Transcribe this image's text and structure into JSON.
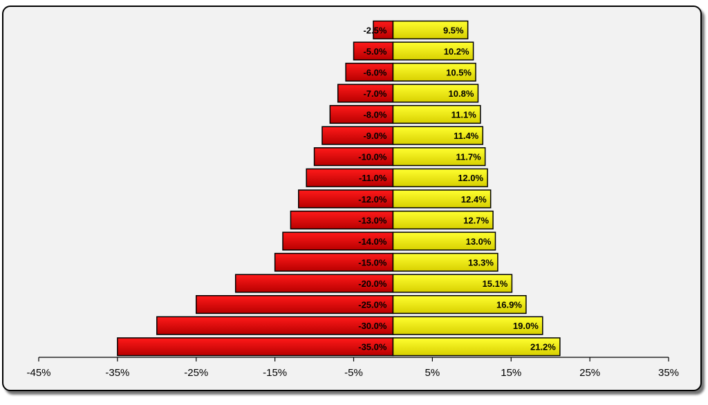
{
  "chart_data": {
    "type": "bar",
    "orientation": "horizontal",
    "stacked": "diverging",
    "xlim": [
      -45,
      35
    ],
    "x_ticks": [
      -45,
      -35,
      -25,
      -15,
      -5,
      5,
      15,
      25,
      35
    ],
    "x_tick_labels": [
      "-45%",
      "-35%",
      "-25%",
      "-15%",
      "-5%",
      "5%",
      "15%",
      "25%",
      "35%"
    ],
    "grid": false,
    "legend": "none",
    "title": "",
    "xlabel": "",
    "ylabel": "",
    "series": [
      {
        "color": "#e00000",
        "values": [
          -2.5,
          -5.0,
          -6.0,
          -7.0,
          -8.0,
          -9.0,
          -10.0,
          -11.0,
          -12.0,
          -13.0,
          -14.0,
          -15.0,
          -20.0,
          -25.0,
          -30.0,
          -35.0
        ],
        "labels": [
          "-2.5%",
          "-5.0%",
          "-6.0%",
          "-7.0%",
          "-8.0%",
          "-9.0%",
          "-10.0%",
          "-11.0%",
          "-12.0%",
          "-13.0%",
          "-14.0%",
          "-15.0%",
          "-20.0%",
          "-25.0%",
          "-30.0%",
          "-35.0%"
        ]
      },
      {
        "color": "#e8e800",
        "values": [
          9.5,
          10.2,
          10.5,
          10.8,
          11.1,
          11.4,
          11.7,
          12.0,
          12.4,
          12.7,
          13.0,
          13.3,
          15.1,
          16.9,
          19.0,
          21.2
        ],
        "labels": [
          "9.5%",
          "10.2%",
          "10.5%",
          "10.8%",
          "11.1%",
          "11.4%",
          "11.7%",
          "12.0%",
          "12.4%",
          "12.7%",
          "13.0%",
          "13.3%",
          "15.1%",
          "16.9%",
          "19.0%",
          "21.2%"
        ]
      }
    ]
  }
}
